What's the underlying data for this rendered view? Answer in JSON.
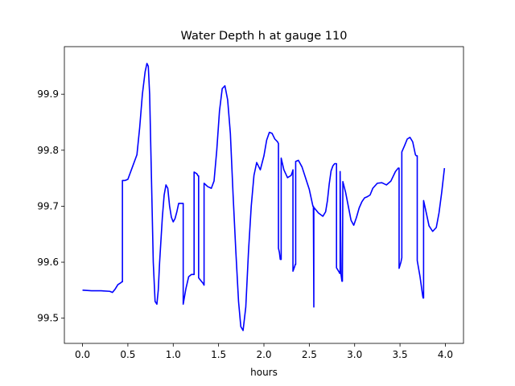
{
  "chart_data": {
    "type": "line",
    "title": "Water Depth h at gauge 110",
    "xlabel": "hours",
    "ylabel": "",
    "xlim": [
      -0.2,
      4.2
    ],
    "ylim": [
      99.455,
      99.985
    ],
    "xticks": [
      0.0,
      0.5,
      1.0,
      1.5,
      2.0,
      2.5,
      3.0,
      3.5,
      4.0
    ],
    "xtick_labels": [
      "0.0",
      "0.5",
      "1.0",
      "1.5",
      "2.0",
      "2.5",
      "3.0",
      "3.5",
      "4.0"
    ],
    "yticks": [
      99.5,
      99.6,
      99.7,
      99.8,
      99.9
    ],
    "ytick_labels": [
      "99.5",
      "99.6",
      "99.7",
      "99.8",
      "99.9"
    ],
    "grid": false,
    "color": "#0000ff",
    "series": [
      {
        "name": "",
        "x": [
          0.0,
          0.1,
          0.2,
          0.3,
          0.33,
          0.36,
          0.39,
          0.42,
          0.435,
          0.44,
          0.44,
          0.47,
          0.5,
          0.55,
          0.6,
          0.63,
          0.66,
          0.69,
          0.71,
          0.725,
          0.74,
          0.76,
          0.78,
          0.8,
          0.82,
          0.835,
          0.85,
          0.88,
          0.9,
          0.92,
          0.94,
          0.96,
          0.98,
          1.0,
          1.02,
          1.04,
          1.06,
          1.08,
          1.1,
          1.11,
          1.11,
          1.14,
          1.17,
          1.2,
          1.22,
          1.225,
          1.23,
          1.23,
          1.26,
          1.275,
          1.28,
          1.28,
          1.33,
          1.34,
          1.34,
          1.38,
          1.42,
          1.45,
          1.48,
          1.51,
          1.54,
          1.57,
          1.6,
          1.63,
          1.66,
          1.69,
          1.72,
          1.745,
          1.77,
          1.8,
          1.83,
          1.86,
          1.89,
          1.92,
          1.96,
          2.0,
          2.03,
          2.06,
          2.09,
          2.12,
          2.15,
          2.16,
          2.16,
          2.17,
          2.18,
          2.19,
          2.19,
          2.22,
          2.26,
          2.3,
          2.315,
          2.32,
          2.32,
          2.34,
          2.345,
          2.35,
          2.35,
          2.38,
          2.42,
          2.46,
          2.5,
          2.54,
          2.545,
          2.55,
          2.55,
          2.6,
          2.65,
          2.68,
          2.7,
          2.72,
          2.74,
          2.76,
          2.78,
          2.79,
          2.8,
          2.8,
          2.83,
          2.835,
          2.84,
          2.84,
          2.85,
          2.86,
          2.865,
          2.87,
          2.87,
          2.9,
          2.93,
          2.96,
          2.99,
          3.02,
          3.05,
          3.08,
          3.11,
          3.14,
          3.17,
          3.2,
          3.25,
          3.3,
          3.35,
          3.4,
          3.45,
          3.48,
          3.49,
          3.49,
          3.51,
          3.52,
          3.52,
          3.55,
          3.58,
          3.61,
          3.64,
          3.67,
          3.68,
          3.69,
          3.69,
          3.72,
          3.75,
          3.755,
          3.76,
          3.76,
          3.79,
          3.82,
          3.86,
          3.9,
          3.93,
          3.96,
          3.99
        ],
        "values": [
          99.55,
          99.549,
          99.549,
          99.548,
          99.546,
          99.552,
          99.56,
          99.563,
          99.565,
          99.565,
          99.746,
          99.746,
          99.748,
          99.77,
          99.792,
          99.84,
          99.9,
          99.94,
          99.955,
          99.95,
          99.9,
          99.75,
          99.6,
          99.53,
          99.525,
          99.55,
          99.6,
          99.68,
          99.72,
          99.738,
          99.732,
          99.7,
          99.68,
          99.672,
          99.678,
          99.69,
          99.705,
          99.705,
          99.705,
          99.705,
          99.525,
          99.553,
          99.574,
          99.578,
          99.578,
          99.578,
          99.578,
          99.761,
          99.758,
          99.754,
          99.754,
          99.572,
          99.562,
          99.559,
          99.741,
          99.735,
          99.732,
          99.745,
          99.8,
          99.87,
          99.91,
          99.915,
          99.89,
          99.83,
          99.72,
          99.62,
          99.53,
          99.485,
          99.478,
          99.52,
          99.62,
          99.7,
          99.755,
          99.778,
          99.765,
          99.79,
          99.818,
          99.832,
          99.83,
          99.82,
          99.815,
          99.812,
          99.625,
          99.618,
          99.605,
          99.605,
          99.786,
          99.765,
          99.751,
          99.755,
          99.762,
          99.765,
          99.584,
          99.593,
          99.596,
          99.596,
          99.78,
          99.782,
          99.77,
          99.75,
          99.73,
          99.7,
          99.7,
          99.52,
          99.698,
          99.688,
          99.682,
          99.69,
          99.71,
          99.74,
          99.763,
          99.772,
          99.776,
          99.776,
          99.776,
          99.59,
          99.582,
          99.58,
          99.58,
          99.762,
          99.578,
          99.566,
          99.566,
          99.744,
          99.744,
          99.725,
          99.7,
          99.675,
          99.666,
          99.68,
          99.697,
          99.708,
          99.715,
          99.717,
          99.72,
          99.732,
          99.741,
          99.742,
          99.738,
          99.745,
          99.762,
          99.768,
          99.768,
          99.589,
          99.6,
          99.608,
          99.797,
          99.808,
          99.82,
          99.823,
          99.815,
          99.792,
          99.79,
          99.79,
          99.603,
          99.575,
          99.54,
          99.536,
          99.536,
          99.71,
          99.688,
          99.665,
          99.655,
          99.662,
          99.688,
          99.725,
          99.768
        ]
      }
    ]
  }
}
